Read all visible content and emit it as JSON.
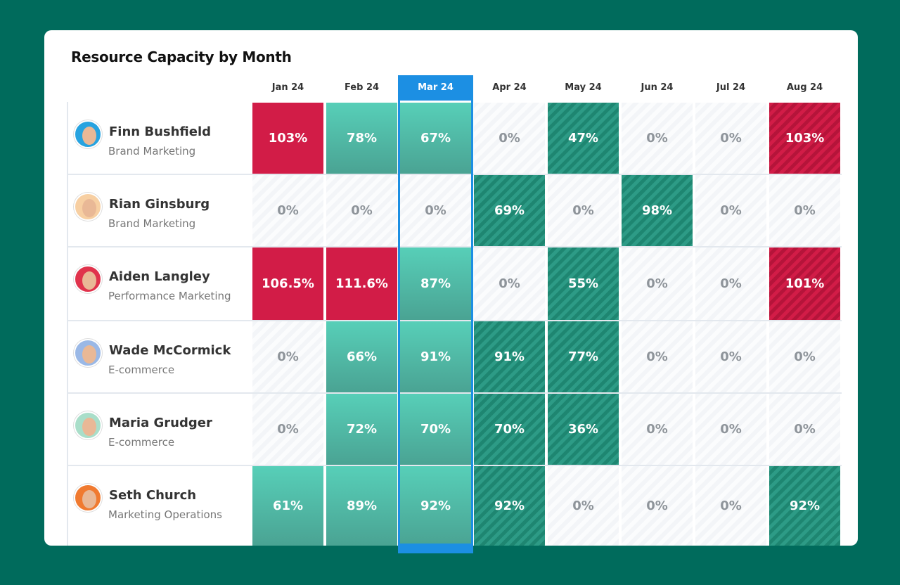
{
  "title": "Resource Capacity by Month",
  "months": [
    "Jan 24",
    "Feb 24",
    "Mar 24",
    "Apr 24",
    "May 24",
    "Jun 24",
    "Jul 24",
    "Aug 24"
  ],
  "rows": [
    {
      "name": "Finn Bushfield",
      "team": "Brand Marketing",
      "cells": [
        "103%",
        "78%",
        "67%",
        "0%",
        "47%",
        "0%",
        "0%",
        "103%"
      ]
    },
    {
      "name": "Rian Ginsburg",
      "team": "Brand Marketing",
      "cells": [
        "0%",
        "0%",
        "0%",
        "69%",
        "0%",
        "98%",
        "0%",
        "0%"
      ]
    },
    {
      "name": "Aiden Langley",
      "team": "Performance Marketing",
      "cells": [
        "106.5%",
        "111.6%",
        "87%",
        "0%",
        "55%",
        "0%",
        "0%",
        "101%"
      ]
    },
    {
      "name": "Wade McCormick",
      "team": "E-commerce",
      "cells": [
        "0%",
        "66%",
        "91%",
        "91%",
        "77%",
        "0%",
        "0%",
        "0%"
      ]
    },
    {
      "name": "Maria Grudger",
      "team": "E-commerce",
      "cells": [
        "0%",
        "72%",
        "70%",
        "70%",
        "36%",
        "0%",
        "0%",
        "0%"
      ]
    },
    {
      "name": "Seth Church",
      "team": "Marketing Operations",
      "cells": [
        "61%",
        "89%",
        "92%",
        "92%",
        "0%",
        "0%",
        "0%",
        "92%"
      ]
    }
  ]
}
